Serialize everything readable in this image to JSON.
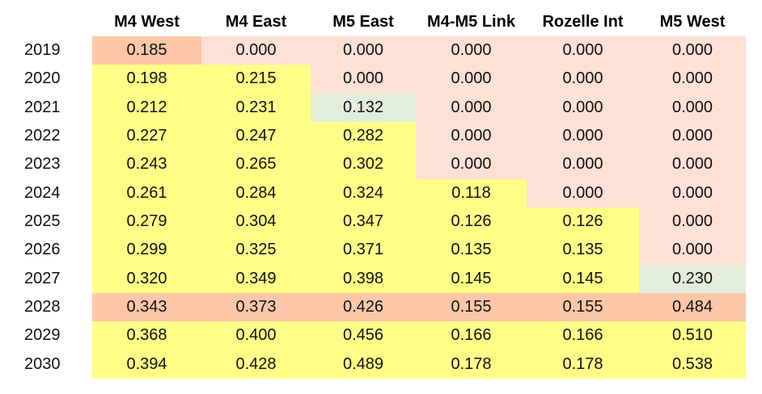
{
  "chart_data": {
    "type": "table",
    "columns": [
      "M4 West",
      "M4 East",
      "M5 East",
      "M4-M5 Link",
      "Rozelle Int",
      "M5 West"
    ],
    "rows": [
      {
        "year": "2019",
        "values": [
          "0.185",
          "0.000",
          "0.000",
          "0.000",
          "0.000",
          "0.000"
        ],
        "fills": [
          "orange",
          "pink",
          "pink",
          "pink",
          "pink",
          "pink"
        ]
      },
      {
        "year": "2020",
        "values": [
          "0.198",
          "0.215",
          "0.000",
          "0.000",
          "0.000",
          "0.000"
        ],
        "fills": [
          "yellow",
          "yellow",
          "pink",
          "pink",
          "pink",
          "pink"
        ]
      },
      {
        "year": "2021",
        "values": [
          "0.212",
          "0.231",
          "0.132",
          "0.000",
          "0.000",
          "0.000"
        ],
        "fills": [
          "yellow",
          "yellow",
          "green",
          "pink",
          "pink",
          "pink"
        ]
      },
      {
        "year": "2022",
        "values": [
          "0.227",
          "0.247",
          "0.282",
          "0.000",
          "0.000",
          "0.000"
        ],
        "fills": [
          "yellow",
          "yellow",
          "yellow",
          "pink",
          "pink",
          "pink"
        ]
      },
      {
        "year": "2023",
        "values": [
          "0.243",
          "0.265",
          "0.302",
          "0.000",
          "0.000",
          "0.000"
        ],
        "fills": [
          "yellow",
          "yellow",
          "yellow",
          "pink",
          "pink",
          "pink"
        ]
      },
      {
        "year": "2024",
        "values": [
          "0.261",
          "0.284",
          "0.324",
          "0.118",
          "0.000",
          "0.000"
        ],
        "fills": [
          "yellow",
          "yellow",
          "yellow",
          "yellow",
          "pink",
          "pink"
        ]
      },
      {
        "year": "2025",
        "values": [
          "0.279",
          "0.304",
          "0.347",
          "0.126",
          "0.126",
          "0.000"
        ],
        "fills": [
          "yellow",
          "yellow",
          "yellow",
          "yellow",
          "yellow",
          "pink"
        ]
      },
      {
        "year": "2026",
        "values": [
          "0.299",
          "0.325",
          "0.371",
          "0.135",
          "0.135",
          "0.000"
        ],
        "fills": [
          "yellow",
          "yellow",
          "yellow",
          "yellow",
          "yellow",
          "pink"
        ]
      },
      {
        "year": "2027",
        "values": [
          "0.320",
          "0.349",
          "0.398",
          "0.145",
          "0.145",
          "0.230"
        ],
        "fills": [
          "yellow",
          "yellow",
          "yellow",
          "yellow",
          "yellow",
          "green"
        ]
      },
      {
        "year": "2028",
        "values": [
          "0.343",
          "0.373",
          "0.426",
          "0.155",
          "0.155",
          "0.484"
        ],
        "fills": [
          "orange",
          "orange",
          "orange",
          "orange",
          "orange",
          "orange"
        ]
      },
      {
        "year": "2029",
        "values": [
          "0.368",
          "0.400",
          "0.456",
          "0.166",
          "0.166",
          "0.510"
        ],
        "fills": [
          "yellow",
          "yellow",
          "yellow",
          "yellow",
          "yellow",
          "yellow"
        ]
      },
      {
        "year": "2030",
        "values": [
          "0.394",
          "0.428",
          "0.489",
          "0.178",
          "0.178",
          "0.538"
        ],
        "fills": [
          "yellow",
          "yellow",
          "yellow",
          "yellow",
          "yellow",
          "yellow"
        ]
      }
    ],
    "colors": {
      "yellow": "#ffff88",
      "pink": "#fde0d6",
      "orange": "#fbc7a8",
      "green": "#e2eedb",
      "header_text": "#000000",
      "text": "#111111"
    }
  }
}
